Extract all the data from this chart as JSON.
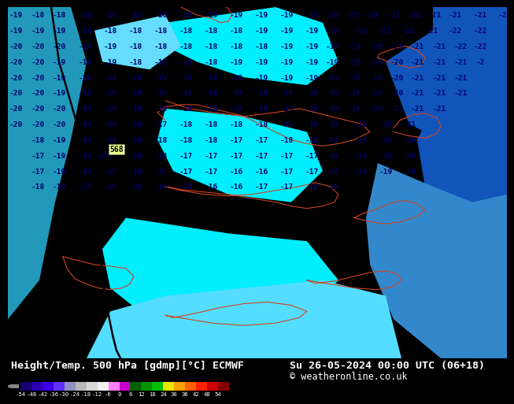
{
  "title_left": "Height/Temp. 500 hPa [gdmp][°C] ECMWF",
  "title_right": "Su 26-05-2024 00:00 UTC (06+18)",
  "copyright": "© weatheronline.co.uk",
  "colorbar_values": [
    -54,
    -48,
    -42,
    -36,
    -30,
    -24,
    -18,
    -12,
    -6,
    0,
    6,
    12,
    18,
    24,
    30,
    36,
    42,
    48,
    54
  ],
  "colorbar_colors": [
    "#1a006e",
    "#2800b0",
    "#3c00e8",
    "#6030ff",
    "#9090c0",
    "#b8b8b8",
    "#d8d8d8",
    "#f0f0f0",
    "#ff80ff",
    "#cc00cc",
    "#006000",
    "#009000",
    "#00c000",
    "#e8e800",
    "#ffa000",
    "#ff6000",
    "#ff2000",
    "#cc0000",
    "#880000"
  ],
  "bg_base": "#44ccee",
  "bg_light_cyan": "#00eeff",
  "bg_medium_blue": "#44aadd",
  "bg_dark_blue": "#1155bb",
  "bg_deeper_blue": "#0033aa",
  "text_color": "#000066",
  "black_line_color": "#000000",
  "red_line_color": "#cc4422",
  "label_568_bg": "#eeff88"
}
